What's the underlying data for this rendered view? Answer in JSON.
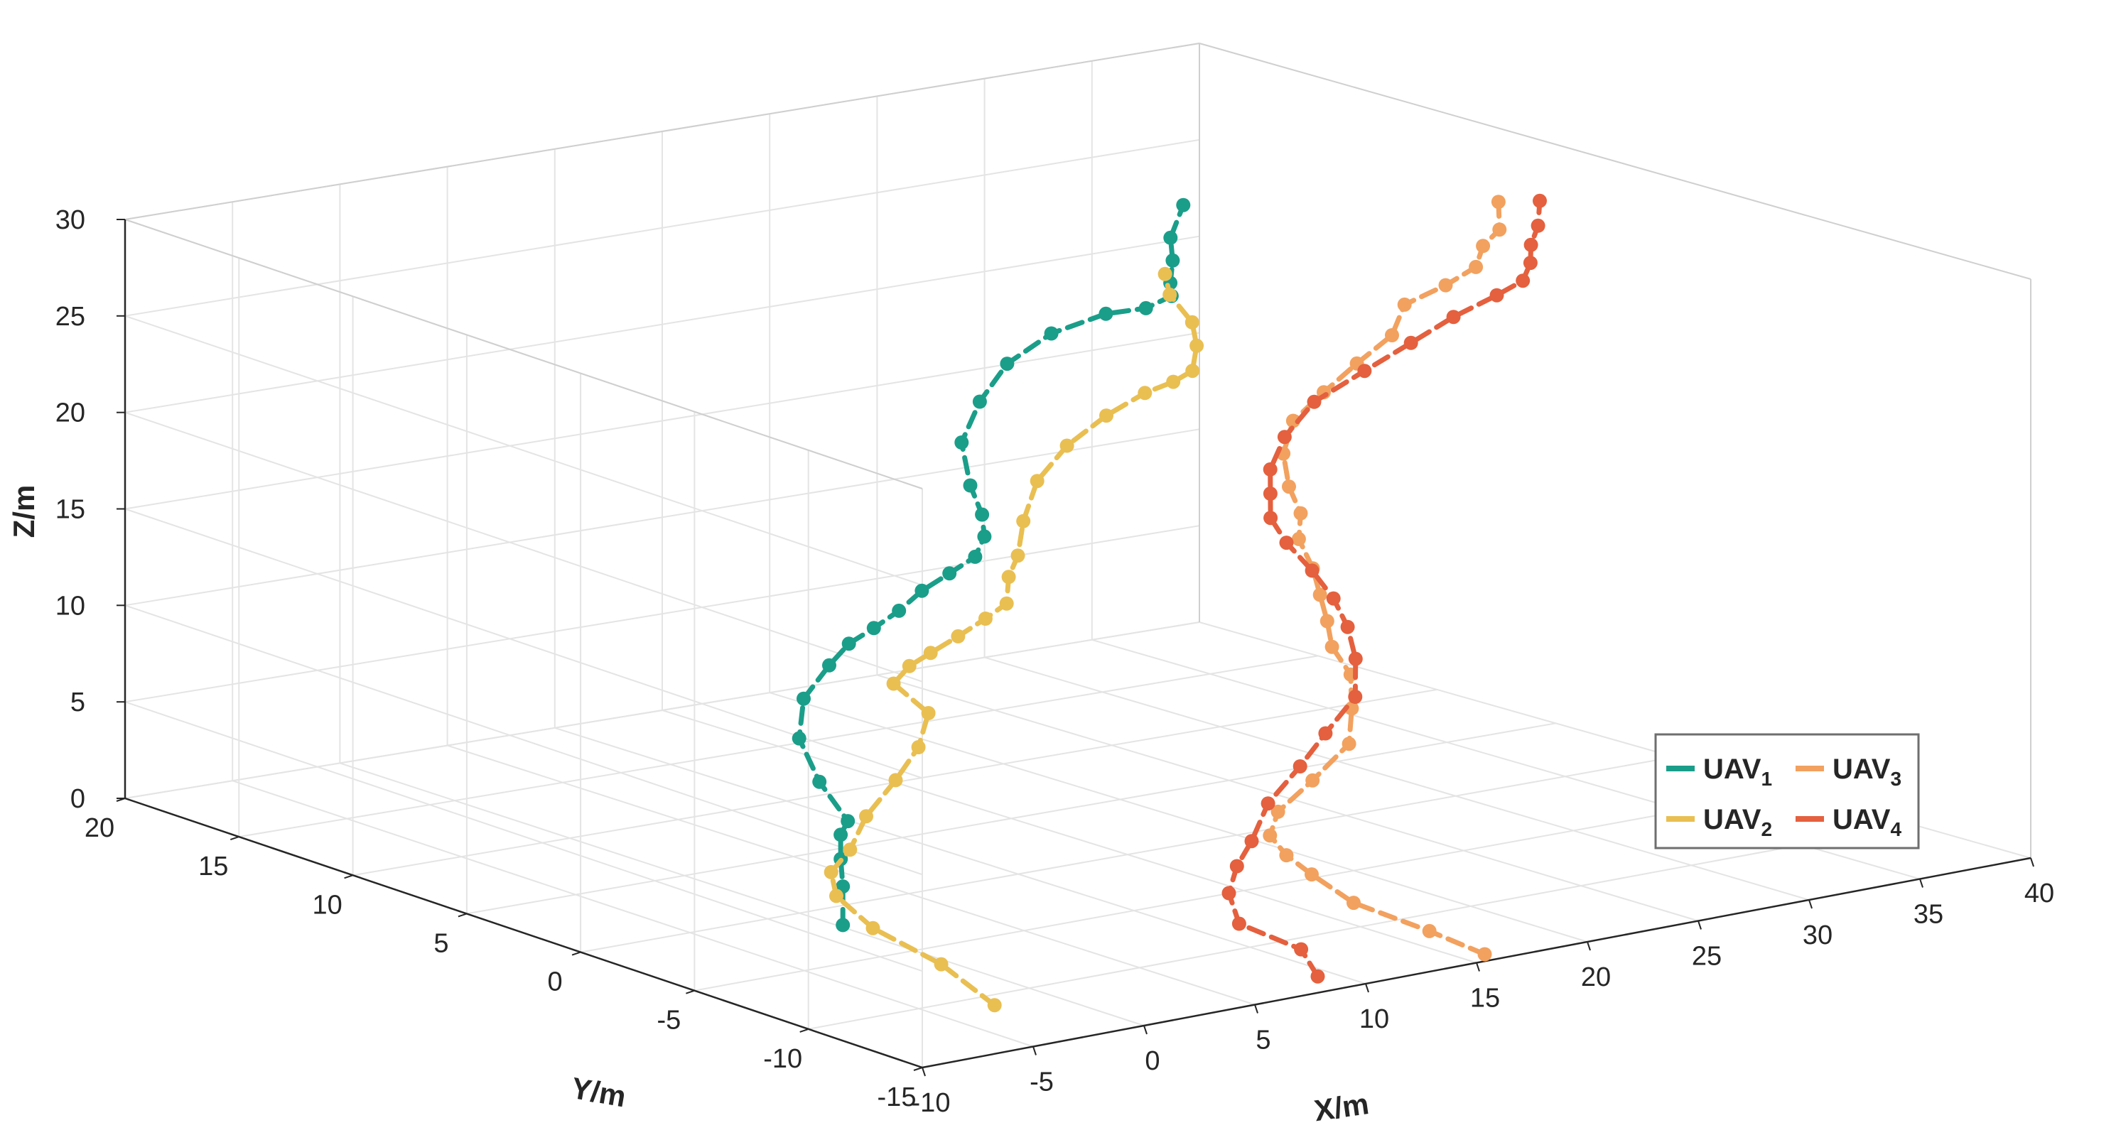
{
  "chart_data": {
    "type": "line",
    "title": "",
    "xlabel": "X/m",
    "ylabel": "Y/m",
    "zlabel": "Z/m",
    "xlim": [
      -10,
      40
    ],
    "ylim": [
      -15,
      20
    ],
    "zlim": [
      0,
      30
    ],
    "xticks": [
      "-10",
      "-5",
      "0",
      "5",
      "10",
      "15",
      "20",
      "25",
      "30",
      "35",
      "40"
    ],
    "yticks": [
      "-15",
      "-10",
      "-5",
      "0",
      "5",
      "10",
      "15",
      "20"
    ],
    "zticks": [
      "0",
      "5",
      "10",
      "15",
      "20",
      "25",
      "30"
    ],
    "grid": true,
    "legend_position": "bottom-right",
    "series": [
      {
        "name": "UAV1",
        "label_base": "UAV",
        "label_sub": "1",
        "color": "#1a9e8a",
        "line_style": "dashed",
        "marker": "circle",
        "points": [
          [
            0.2,
            -1.7,
            0.0
          ],
          [
            0.2,
            -1.7,
            2.0
          ],
          [
            0.0,
            -1.8,
            3.5
          ],
          [
            0.1,
            -1.7,
            4.7
          ],
          [
            -0.2,
            -2.3,
            5.7
          ],
          [
            0.6,
            -0.3,
            6.8
          ],
          [
            2.2,
            2.1,
            7.8
          ],
          [
            4.2,
            3.8,
            8.8
          ],
          [
            5.9,
            4.3,
            10.0
          ],
          [
            6.7,
            4.2,
            11.0
          ],
          [
            7.1,
            3.5,
            12.0
          ],
          [
            7.3,
            2.6,
            13.2
          ],
          [
            7.5,
            1.8,
            14.5
          ],
          [
            7.6,
            0.7,
            15.8
          ],
          [
            7.4,
            -0.6,
            17.2
          ],
          [
            7.4,
            -1.0,
            18.4
          ],
          [
            7.4,
            -0.9,
            19.5
          ],
          [
            7.6,
            -0.2,
            20.7
          ],
          [
            9.0,
            1.5,
            22.0
          ],
          [
            11.0,
            2.6,
            23.3
          ],
          [
            13.0,
            3.3,
            24.6
          ],
          [
            14.6,
            2.9,
            26.0
          ],
          [
            15.5,
            1.4,
            27.4
          ],
          [
            15.2,
            -0.6,
            28.5
          ],
          [
            15.1,
            -1.8,
            29.6
          ],
          [
            14.3,
            -2.5,
            30.7
          ],
          [
            14.3,
            -2.6,
            31.9
          ],
          [
            14.2,
            -2.6,
            33.1
          ],
          [
            15.1,
            -2.3,
            34.5
          ]
        ]
      },
      {
        "name": "UAV2",
        "label_base": "UAV",
        "label_sub": "2",
        "color": "#e9bf52",
        "line_style": "dashed",
        "marker": "circle",
        "points": [
          [
            -2.5,
            -10.9,
            0.0
          ],
          [
            -1.8,
            -7.9,
            0.8
          ],
          [
            -2.3,
            -5.4,
            1.8
          ],
          [
            -2.4,
            -3.9,
            2.9
          ],
          [
            -1.8,
            -3.1,
            3.7
          ],
          [
            -0.1,
            -2.3,
            4.2
          ],
          [
            2.0,
            -1.0,
            5.0
          ],
          [
            4.4,
            0.0,
            6.0
          ],
          [
            6.5,
            1.0,
            6.9
          ],
          [
            7.8,
            1.8,
            8.1
          ],
          [
            7.9,
            3.4,
            9.0
          ],
          [
            8.2,
            3.0,
            10.0
          ],
          [
            7.9,
            1.8,
            11.2
          ],
          [
            8.1,
            0.8,
            12.4
          ],
          [
            8.4,
            -0.1,
            13.6
          ],
          [
            8.1,
            -1.3,
            14.9
          ],
          [
            8.3,
            -1.2,
            16.2
          ],
          [
            8.4,
            -1.5,
            17.4
          ],
          [
            9.6,
            -0.6,
            18.6
          ],
          [
            11.4,
            0.5,
            19.9
          ],
          [
            13.4,
            1.1,
            21.1
          ],
          [
            15.2,
            1.1,
            22.3
          ],
          [
            15.9,
            0.1,
            23.7
          ],
          [
            15.6,
            -1.4,
            24.9
          ],
          [
            15.2,
            -2.6,
            26.0
          ],
          [
            15.5,
            -2.5,
            27.2
          ],
          [
            15.4,
            -2.4,
            28.4
          ],
          [
            14.8,
            -2.0,
            29.8
          ],
          [
            14.8,
            -1.8,
            30.8
          ]
        ]
      },
      {
        "name": "UAV3",
        "label_base": "UAV",
        "label_sub": "3",
        "color": "#f2a15f",
        "line_style": "dashed",
        "marker": "circle",
        "points": [
          [
            16.0,
            -14.4,
            0.0
          ],
          [
            15.5,
            -12.5,
            0.6
          ],
          [
            14.7,
            -10.0,
            1.3
          ],
          [
            14.7,
            -8.2,
            2.1
          ],
          [
            14.5,
            -7.3,
            2.8
          ],
          [
            14.6,
            -6.5,
            3.5
          ],
          [
            15.6,
            -5.9,
            4.3
          ],
          [
            17.7,
            -5.4,
            5.3
          ],
          [
            20.0,
            -4.8,
            6.5
          ],
          [
            21.4,
            -3.6,
            7.6
          ],
          [
            22.2,
            -2.8,
            8.9
          ],
          [
            22.1,
            -2.1,
            10.1
          ],
          [
            22.2,
            -1.8,
            11.3
          ],
          [
            22.3,
            -1.4,
            12.5
          ],
          [
            22.4,
            -1.0,
            13.7
          ],
          [
            22.4,
            -0.4,
            15.0
          ],
          [
            22.7,
            -0.2,
            16.2
          ],
          [
            22.7,
            0.3,
            17.4
          ],
          [
            23.3,
            1.1,
            18.7
          ],
          [
            24.5,
            1.8,
            19.9
          ],
          [
            25.9,
            1.8,
            21.1
          ],
          [
            27.2,
            1.6,
            22.4
          ],
          [
            28.7,
            1.5,
            23.6
          ],
          [
            29.6,
            1.8,
            24.9
          ],
          [
            30.4,
            0.8,
            26.1
          ],
          [
            30.6,
            -0.3,
            27.4
          ],
          [
            30.6,
            -0.6,
            28.6
          ],
          [
            30.6,
            -1.3,
            29.7
          ],
          [
            31.2,
            -0.7,
            30.8
          ]
        ]
      },
      {
        "name": "UAV4",
        "label_base": "UAV",
        "label_sub": "4",
        "color": "#e4603e",
        "line_style": "dashed",
        "marker": "circle",
        "points": [
          [
            9.3,
            -13.6,
            0.0
          ],
          [
            9.7,
            -12.5,
            0.9
          ],
          [
            9.2,
            -10.3,
            1.5
          ],
          [
            10.1,
            -9.0,
            2.4
          ],
          [
            11.2,
            -8.3,
            3.3
          ],
          [
            12.5,
            -7.7,
            4.1
          ],
          [
            14.3,
            -6.7,
            5.3
          ],
          [
            16.5,
            -6.0,
            6.5
          ],
          [
            18.5,
            -5.2,
            7.5
          ],
          [
            20.6,
            -4.5,
            8.7
          ],
          [
            22.0,
            -3.2,
            9.9
          ],
          [
            22.6,
            -2.3,
            11.1
          ],
          [
            22.7,
            -1.6,
            12.3
          ],
          [
            22.9,
            -0.5,
            13.3
          ],
          [
            22.8,
            0.5,
            14.4
          ],
          [
            22.5,
            0.9,
            15.6
          ],
          [
            22.6,
            1.0,
            16.8
          ],
          [
            22.7,
            1.1,
            18.0
          ],
          [
            24.0,
            1.7,
            19.2
          ],
          [
            26.0,
            2.3,
            20.4
          ],
          [
            28.2,
            2.2,
            21.6
          ],
          [
            30.0,
            1.9,
            22.8
          ],
          [
            31.3,
            1.3,
            24.1
          ],
          [
            32.2,
            0.3,
            25.4
          ],
          [
            32.1,
            -0.9,
            26.6
          ],
          [
            31.8,
            -1.5,
            27.8
          ],
          [
            31.5,
            -1.8,
            28.9
          ],
          [
            31.5,
            -2.1,
            30.0
          ],
          [
            31.9,
            -1.8,
            31.1
          ]
        ]
      }
    ]
  }
}
